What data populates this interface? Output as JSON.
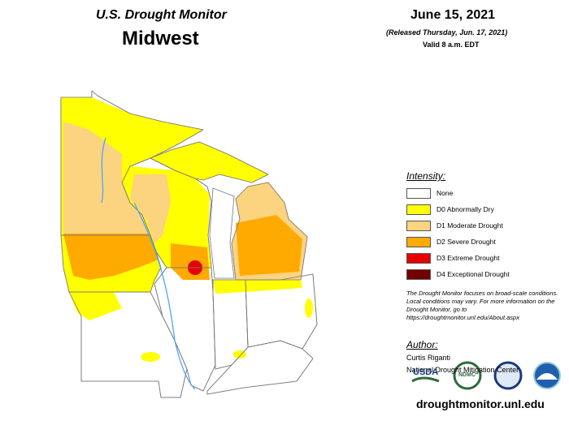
{
  "header": {
    "title": "U.S. Drought Monitor",
    "region": "Midwest",
    "date": "June 15, 2021",
    "released": "(Released Thursday, Jun. 17, 2021)",
    "valid": "Valid 8 a.m. EDT"
  },
  "legend": {
    "title": "Intensity:",
    "items": [
      {
        "label": "None",
        "color": "#ffffff"
      },
      {
        "label": "D0 Abnormally Dry",
        "color": "#ffff00"
      },
      {
        "label": "D1 Moderate Drought",
        "color": "#fcd37f"
      },
      {
        "label": "D2 Severe Drought",
        "color": "#ffaa00"
      },
      {
        "label": "D3 Extreme Drought",
        "color": "#e60000"
      },
      {
        "label": "D4 Exceptional Drought",
        "color": "#730000"
      }
    ]
  },
  "note": "The Drought Monitor focuses on broad-scale conditions. Local conditions may vary. For more information on the Drought Monitor, go to https://droughtmonitor.unl.edu/About.aspx",
  "author": {
    "title": "Author:",
    "name": "Curtis Riganti",
    "org": "National Drought Mitigation Center"
  },
  "logos": [
    "USDA",
    "NDMC"
  ],
  "url": "droughtmonitor.unl.edu"
}
